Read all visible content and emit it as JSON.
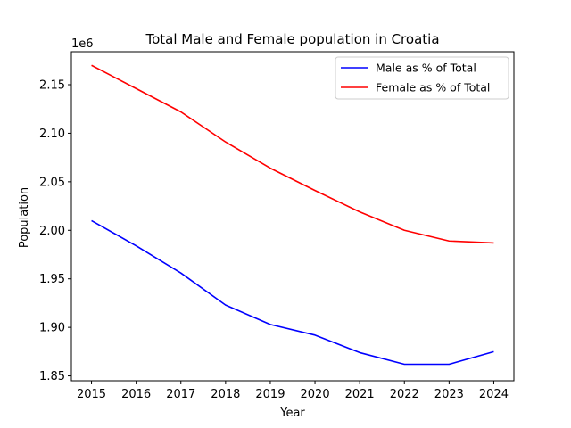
{
  "chart_data": {
    "type": "line",
    "title": "Total Male and Female population in Croatia",
    "xlabel": "Year",
    "ylabel": "Population",
    "y_offset_label": "1e6",
    "x": [
      2015,
      2016,
      2017,
      2018,
      2019,
      2020,
      2021,
      2022,
      2023,
      2024
    ],
    "x_tick_labels": [
      "2015",
      "2016",
      "2017",
      "2018",
      "2019",
      "2020",
      "2021",
      "2022",
      "2023",
      "2024"
    ],
    "y_ticks": [
      1.85,
      1.9,
      1.95,
      2.0,
      2.05,
      2.1,
      2.15
    ],
    "y_tick_labels": [
      "1.85",
      "1.90",
      "1.95",
      "2.00",
      "2.05",
      "2.10",
      "2.15"
    ],
    "ylim": [
      1.845,
      2.184
    ],
    "xlim": [
      2014.55,
      2024.45
    ],
    "grid": false,
    "legend_position": "top-right",
    "series": [
      {
        "name": "Male as % of Total",
        "color": "#0000ff",
        "values": [
          2.01,
          1.984,
          1.956,
          1.923,
          1.903,
          1.892,
          1.874,
          1.862,
          1.862,
          1.875
        ]
      },
      {
        "name": "Female as % of Total",
        "color": "#ff0000",
        "values": [
          2.17,
          2.146,
          2.122,
          2.091,
          2.064,
          2.041,
          2.019,
          2.0,
          1.989,
          1.987
        ]
      }
    ]
  }
}
